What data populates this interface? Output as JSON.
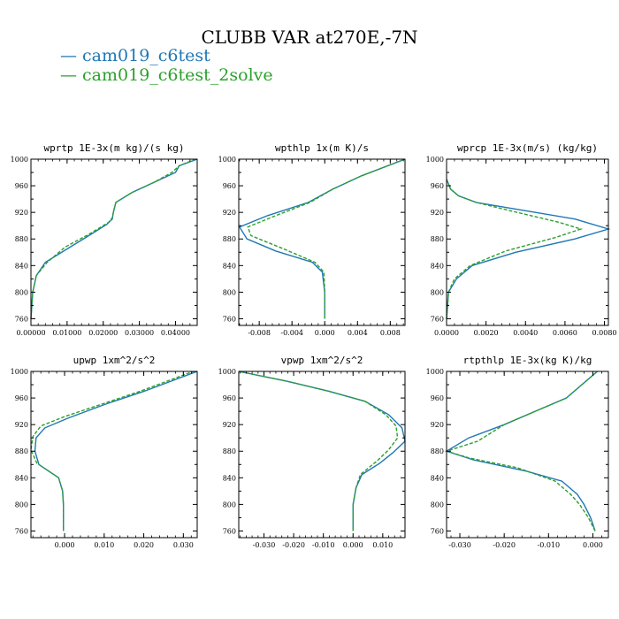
{
  "title": "CLUBB VAR at270E,-7N",
  "legend": [
    {
      "label": "— cam019_c6test",
      "color": "#1f77b4"
    },
    {
      "label": "— cam019_c6test_2solve",
      "color": "#2ca02c"
    }
  ],
  "chart_data": [
    {
      "type": "line",
      "title": "wprtp  1E-3x(m kg)/(s kg)",
      "xlim": [
        0,
        0.046
      ],
      "ylim": [
        1000,
        750
      ],
      "xticks": [
        0,
        0.01,
        0.02,
        0.03,
        0.04
      ],
      "xticklabels": [
        "0.00000",
        "0.01000",
        "0.02000",
        "0.03000",
        "0.04000"
      ],
      "yticks": [
        760,
        800,
        840,
        880,
        920,
        960,
        1000
      ],
      "series": [
        {
          "name": "cam019_c6test",
          "style": "solid",
          "x": [
            0,
            0.0005,
            0.0015,
            0.004,
            0.01,
            0.016,
            0.021,
            0.0225,
            0.0228,
            0.0235,
            0.028,
            0.034,
            0.04,
            0.041,
            0.046
          ],
          "y": [
            760,
            800,
            825,
            845,
            865,
            885,
            902,
            910,
            920,
            935,
            950,
            965,
            980,
            990,
            1000
          ]
        },
        {
          "name": "cam019_c6test_2solve",
          "style": "dashed",
          "x": [
            0,
            0.0005,
            0.0015,
            0.0045,
            0.0095,
            0.016,
            0.0215,
            0.0225,
            0.0228,
            0.0235,
            0.028,
            0.034,
            0.039,
            0.041,
            0.0455
          ],
          "y": [
            760,
            800,
            825,
            845,
            868,
            887,
            905,
            912,
            920,
            935,
            950,
            965,
            980,
            990,
            1000
          ]
        }
      ]
    },
    {
      "type": "line",
      "title": "wpthlp  1x(m K)/s",
      "xlim": [
        -0.0105,
        0.0098
      ],
      "ylim": [
        1000,
        750
      ],
      "xticks": [
        -0.008,
        -0.004,
        0,
        0.004,
        0.008
      ],
      "xticklabels": [
        "-0.008",
        "-0.004",
        "0.000",
        "0.004",
        "0.008"
      ],
      "yticks": [
        760,
        800,
        840,
        880,
        920,
        960,
        1000
      ],
      "series": [
        {
          "name": "cam019_c6test",
          "style": "solid",
          "x": [
            0.0,
            0.0,
            -0.0003,
            -0.0015,
            -0.006,
            -0.0095,
            -0.0104,
            -0.007,
            -0.002,
            0.001,
            0.0045,
            0.0098
          ],
          "y": [
            760,
            800,
            830,
            845,
            862,
            880,
            898,
            915,
            935,
            955,
            975,
            1000
          ]
        },
        {
          "name": "cam019_c6test_2solve",
          "style": "dashed",
          "x": [
            0.0,
            0.0,
            -0.0001,
            -0.0012,
            -0.005,
            -0.009,
            -0.0094,
            -0.006,
            -0.0018,
            0.001,
            0.0045,
            0.0098
          ],
          "y": [
            760,
            800,
            830,
            845,
            865,
            885,
            898,
            915,
            935,
            955,
            975,
            1000
          ]
        }
      ]
    },
    {
      "type": "line",
      "title": "wprcp  1E-3x(m/s) (kg/kg)",
      "xlim": [
        0,
        0.0082
      ],
      "ylim": [
        1000,
        750
      ],
      "xticks": [
        0,
        0.002,
        0.004,
        0.006,
        0.008
      ],
      "xticklabels": [
        "0.0000",
        "0.0020",
        "0.0040",
        "0.0060",
        "0.0080"
      ],
      "yticks": [
        760,
        800,
        840,
        880,
        920,
        960,
        1000
      ],
      "series": [
        {
          "name": "cam019_c6test",
          "style": "solid",
          "x": [
            0.0,
            0.0001,
            0.0005,
            0.0013,
            0.0035,
            0.0065,
            0.0082,
            0.0065,
            0.0035,
            0.0015,
            0.0006,
            0.0002,
            0.0
          ],
          "y": [
            760,
            800,
            820,
            840,
            860,
            880,
            895,
            910,
            925,
            935,
            945,
            955,
            970
          ]
        },
        {
          "name": "cam019_c6test_2solve",
          "style": "dashed",
          "x": [
            0.0,
            0.0001,
            0.0004,
            0.0012,
            0.003,
            0.0055,
            0.0068,
            0.0057,
            0.0033,
            0.0015,
            0.0006,
            0.0002,
            0.0
          ],
          "y": [
            760,
            800,
            820,
            840,
            862,
            882,
            895,
            905,
            922,
            935,
            945,
            955,
            970
          ]
        }
      ]
    },
    {
      "type": "line",
      "title": "upwp  1xm^2/s^2",
      "xlim": [
        -0.0085,
        0.0335
      ],
      "ylim": [
        1000,
        750
      ],
      "xticks": [
        0,
        0.01,
        0.02,
        0.03
      ],
      "xticklabels": [
        "0.000",
        "0.010",
        "0.020",
        "0.030"
      ],
      "yticks": [
        760,
        800,
        840,
        880,
        920,
        960,
        1000
      ],
      "series": [
        {
          "name": "cam019_c6test",
          "style": "solid",
          "x": [
            -0.0003,
            -0.0003,
            -0.0005,
            -0.0015,
            -0.0065,
            -0.0075,
            -0.0072,
            -0.005,
            0.001,
            0.01,
            0.02,
            0.0335
          ],
          "y": [
            760,
            800,
            820,
            840,
            860,
            880,
            900,
            915,
            930,
            950,
            970,
            1000
          ]
        },
        {
          "name": "cam019_c6test_2solve",
          "style": "dashed",
          "x": [
            -0.0003,
            -0.0003,
            -0.0005,
            -0.0015,
            -0.007,
            -0.0085,
            -0.008,
            -0.006,
            0.0,
            0.009,
            0.019,
            0.0325
          ],
          "y": [
            760,
            800,
            820,
            840,
            862,
            882,
            902,
            918,
            932,
            950,
            970,
            1000
          ]
        }
      ]
    },
    {
      "type": "line",
      "title": "vpwp  1xm^2/s^2",
      "xlim": [
        -0.0385,
        0.0175
      ],
      "ylim": [
        1000,
        750
      ],
      "xticks": [
        -0.03,
        -0.02,
        -0.01,
        0,
        0.01
      ],
      "xticklabels": [
        "-0.030",
        "-0.020",
        "-0.010",
        "0.000",
        "0.010"
      ],
      "yticks": [
        760,
        800,
        840,
        880,
        920,
        960,
        1000
      ],
      "series": [
        {
          "name": "cam019_c6test",
          "style": "solid",
          "x": [
            0.0,
            0.0,
            0.001,
            0.003,
            0.009,
            0.0135,
            0.0175,
            0.0165,
            0.012,
            0.004,
            -0.008,
            -0.022,
            -0.0385
          ],
          "y": [
            760,
            800,
            825,
            845,
            862,
            878,
            895,
            915,
            935,
            955,
            970,
            985,
            1000
          ]
        },
        {
          "name": "cam019_c6test_2solve",
          "style": "dashed",
          "x": [
            0.0,
            0.0,
            0.001,
            0.0025,
            0.008,
            0.012,
            0.015,
            0.0145,
            0.011,
            0.004,
            -0.008,
            -0.022,
            -0.0385
          ],
          "y": [
            760,
            800,
            825,
            845,
            865,
            882,
            900,
            918,
            935,
            955,
            970,
            985,
            1000
          ]
        }
      ]
    },
    {
      "type": "line",
      "title": "rtpthlp  1E-3x(kg K)/kg",
      "xlim": [
        -0.033,
        0.0035
      ],
      "ylim": [
        1000,
        750
      ],
      "xticks": [
        -0.03,
        -0.02,
        -0.01,
        0
      ],
      "xticklabels": [
        "-0.030",
        "-0.020",
        "-0.010",
        "0.000"
      ],
      "yticks": [
        760,
        800,
        840,
        880,
        920,
        960,
        1000
      ],
      "series": [
        {
          "name": "cam019_c6test",
          "style": "solid",
          "x": [
            0.0005,
            -0.0005,
            -0.002,
            -0.0035,
            -0.007,
            -0.015,
            -0.027,
            -0.033,
            -0.028,
            -0.02,
            -0.013,
            -0.006,
            0.001
          ],
          "y": [
            760,
            780,
            800,
            815,
            835,
            850,
            867,
            880,
            900,
            920,
            940,
            960,
            1000
          ]
        },
        {
          "name": "cam019_c6test_2solve",
          "style": "dashed",
          "x": [
            0.0005,
            -0.001,
            -0.003,
            -0.005,
            -0.0085,
            -0.017,
            -0.028,
            -0.033,
            -0.026,
            -0.02,
            -0.013,
            -0.006,
            0.001
          ],
          "y": [
            760,
            780,
            800,
            815,
            835,
            855,
            870,
            880,
            895,
            920,
            940,
            960,
            1000
          ]
        }
      ]
    }
  ]
}
